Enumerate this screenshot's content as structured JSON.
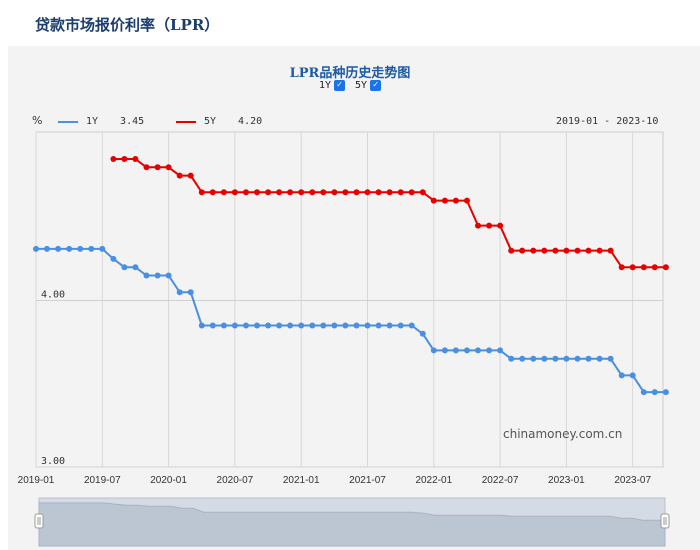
{
  "page": {
    "title": "贷款市场报价利率（LPR）"
  },
  "chart": {
    "title": "LPR品种历史走势图",
    "toggles": [
      {
        "label": "1Y",
        "checked": true
      },
      {
        "label": "5Y",
        "checked": true
      }
    ],
    "unit": "%",
    "legend": [
      {
        "name": "1Y",
        "latest": "3.45",
        "color": "#4a90e2"
      },
      {
        "name": "5Y",
        "latest": "4.20",
        "color": "#e60000"
      }
    ],
    "date_range": "2019-01 - 2023-10",
    "watermark": "chinamoney.com.cn"
  },
  "chart_data": {
    "type": "line",
    "xlabel": "",
    "ylabel": "%",
    "ylim": [
      3.0,
      4.95
    ],
    "y_ticks": [
      "4.00",
      "3.00"
    ],
    "x_ticks": [
      "2019-01",
      "2019-07",
      "2020-01",
      "2020-07",
      "2021-01",
      "2021-07",
      "2022-01",
      "2022-07",
      "2023-01",
      "2023-07"
    ],
    "x": [
      "2019-01",
      "2019-02",
      "2019-03",
      "2019-04",
      "2019-05",
      "2019-06",
      "2019-07",
      "2019-08",
      "2019-09",
      "2019-10",
      "2019-11",
      "2019-12",
      "2020-01",
      "2020-02",
      "2020-03",
      "2020-04",
      "2020-05",
      "2020-06",
      "2020-07",
      "2020-08",
      "2020-09",
      "2020-10",
      "2020-11",
      "2020-12",
      "2021-01",
      "2021-02",
      "2021-03",
      "2021-04",
      "2021-05",
      "2021-06",
      "2021-07",
      "2021-08",
      "2021-09",
      "2021-10",
      "2021-11",
      "2021-12",
      "2022-01",
      "2022-02",
      "2022-03",
      "2022-04",
      "2022-05",
      "2022-06",
      "2022-07",
      "2022-08",
      "2022-09",
      "2022-10",
      "2022-11",
      "2022-12",
      "2023-01",
      "2023-02",
      "2023-03",
      "2023-04",
      "2023-05",
      "2023-06",
      "2023-07",
      "2023-08",
      "2023-09",
      "2023-10"
    ],
    "series": [
      {
        "name": "1Y",
        "color": "#4a90e2",
        "values": [
          4.31,
          4.31,
          4.31,
          4.31,
          4.31,
          4.31,
          4.31,
          4.25,
          4.2,
          4.2,
          4.15,
          4.15,
          4.15,
          4.05,
          4.05,
          3.85,
          3.85,
          3.85,
          3.85,
          3.85,
          3.85,
          3.85,
          3.85,
          3.85,
          3.85,
          3.85,
          3.85,
          3.85,
          3.85,
          3.85,
          3.85,
          3.85,
          3.85,
          3.85,
          3.85,
          3.8,
          3.7,
          3.7,
          3.7,
          3.7,
          3.7,
          3.7,
          3.7,
          3.65,
          3.65,
          3.65,
          3.65,
          3.65,
          3.65,
          3.65,
          3.65,
          3.65,
          3.65,
          3.55,
          3.55,
          3.45,
          3.45,
          3.45
        ]
      },
      {
        "name": "5Y",
        "color": "#e60000",
        "values": [
          null,
          null,
          null,
          null,
          null,
          null,
          null,
          4.85,
          4.85,
          4.85,
          4.8,
          4.8,
          4.8,
          4.75,
          4.75,
          4.65,
          4.65,
          4.65,
          4.65,
          4.65,
          4.65,
          4.65,
          4.65,
          4.65,
          4.65,
          4.65,
          4.65,
          4.65,
          4.65,
          4.65,
          4.65,
          4.65,
          4.65,
          4.65,
          4.65,
          4.65,
          4.6,
          4.6,
          4.6,
          4.6,
          4.45,
          4.45,
          4.45,
          4.3,
          4.3,
          4.3,
          4.3,
          4.3,
          4.3,
          4.3,
          4.3,
          4.3,
          4.3,
          4.2,
          4.2,
          4.2,
          4.2,
          4.2
        ]
      }
    ],
    "grid": true,
    "legend_position": "top-left"
  }
}
